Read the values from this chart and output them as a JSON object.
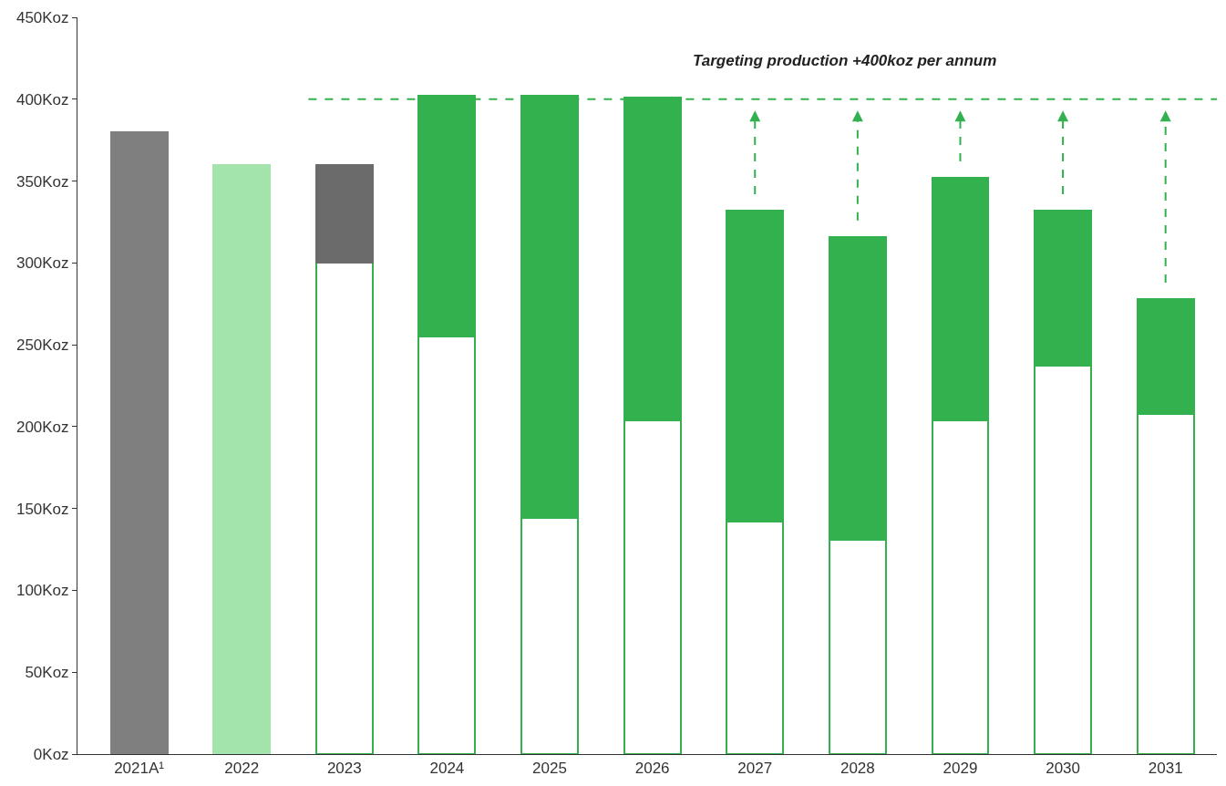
{
  "chart_data": {
    "type": "bar",
    "stacked": true,
    "categories": [
      "2021A¹",
      "2022",
      "2023",
      "2024",
      "2025",
      "2026",
      "2027",
      "2028",
      "2029",
      "2030",
      "2031"
    ],
    "series": [
      {
        "color": "#33b14f",
        "colors": [
          "#7f7f7f",
          "#a3e4ad",
          "#ffffff",
          "#ffffff",
          "#ffffff",
          "#ffffff",
          "#ffffff",
          "#ffffff",
          "#ffffff",
          "#ffffff",
          "#ffffff"
        ],
        "values": [
          380,
          360,
          300,
          255,
          144,
          204,
          142,
          131,
          204,
          237,
          208
        ]
      },
      {
        "color": "#33b14f",
        "colors": [
          null,
          null,
          "#6b6b6b",
          "#33b14f",
          "#33b14f",
          "#33b14f",
          "#33b14f",
          "#33b14f",
          "#33b14f",
          "#33b14f",
          "#33b14f"
        ],
        "values": [
          null,
          null,
          60,
          147,
          258,
          197,
          190,
          185,
          148,
          95,
          70
        ]
      }
    ],
    "ylim": [
      0,
      450
    ],
    "yticks": [
      {
        "value": 0,
        "label": "0Koz"
      },
      {
        "value": 50,
        "label": "50Koz"
      },
      {
        "value": 100,
        "label": "100Koz"
      },
      {
        "value": 150,
        "label": "150Koz"
      },
      {
        "value": 200,
        "label": "200Koz"
      },
      {
        "value": 250,
        "label": "250Koz"
      },
      {
        "value": 300,
        "label": "300Koz"
      },
      {
        "value": 350,
        "label": "350Koz"
      },
      {
        "value": 400,
        "label": "400Koz"
      },
      {
        "value": 450,
        "label": "450Koz"
      }
    ],
    "ref_lines": [
      {
        "axis": "y",
        "value": 400,
        "label": "Targeting production +400koz per annum",
        "color": "#33b14f",
        "line_style": "dashed"
      }
    ],
    "legend": false
  }
}
